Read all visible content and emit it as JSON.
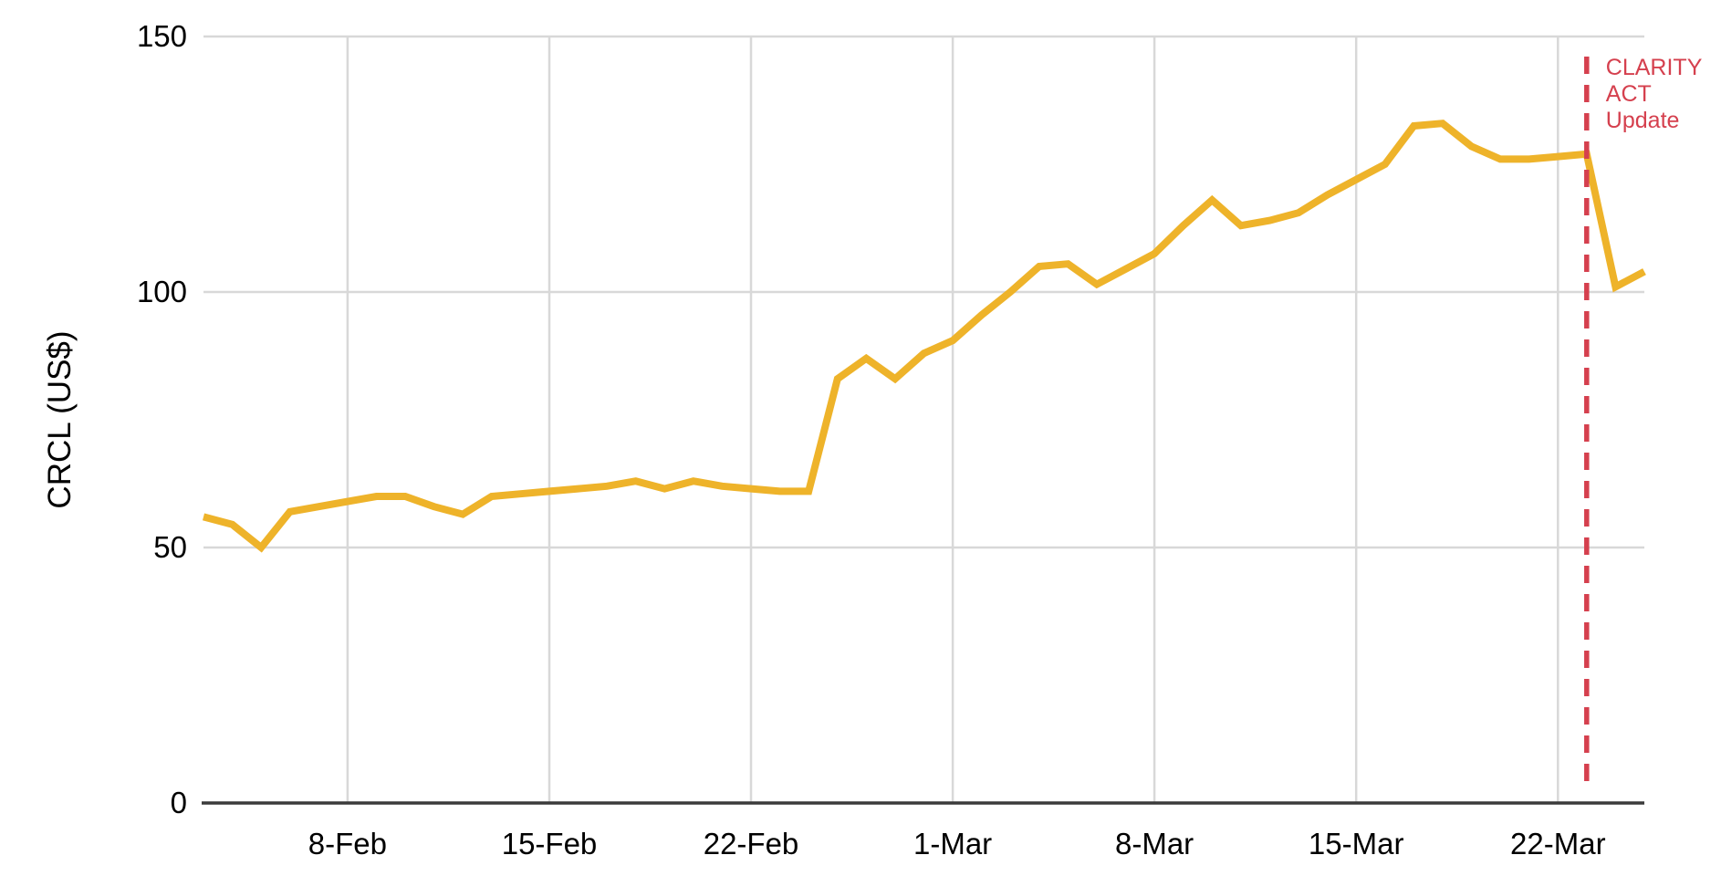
{
  "chart_data": {
    "type": "line",
    "title": "",
    "ylabel": "CRCL (US$)",
    "xlabel": "",
    "ylim": [
      0,
      150
    ],
    "yticks": [
      0,
      50,
      100,
      150
    ],
    "xtick_labels": [
      "8-Feb",
      "15-Feb",
      "22-Feb",
      "1-Mar",
      "8-Mar",
      "15-Mar",
      "22-Mar"
    ],
    "grid": true,
    "legend": false,
    "x": [
      "3-Feb",
      "4-Feb",
      "5-Feb",
      "6-Feb",
      "7-Feb",
      "8-Feb",
      "9-Feb",
      "10-Feb",
      "11-Feb",
      "12-Feb",
      "13-Feb",
      "14-Feb",
      "15-Feb",
      "16-Feb",
      "17-Feb",
      "18-Feb",
      "19-Feb",
      "20-Feb",
      "21-Feb",
      "22-Feb",
      "23-Feb",
      "24-Feb",
      "25-Feb",
      "26-Feb",
      "27-Feb",
      "28-Feb",
      "1-Mar",
      "2-Mar",
      "3-Mar",
      "4-Mar",
      "5-Mar",
      "6-Mar",
      "7-Mar",
      "8-Mar",
      "9-Mar",
      "10-Mar",
      "11-Mar",
      "12-Mar",
      "13-Mar",
      "14-Mar",
      "15-Mar",
      "16-Mar",
      "17-Mar",
      "18-Mar",
      "19-Mar",
      "20-Mar",
      "21-Mar",
      "22-Mar",
      "23-Mar",
      "24-Mar",
      "25-Mar"
    ],
    "series": [
      {
        "name": "CRCL",
        "color": "#EEB32A",
        "values": [
          56,
          54.5,
          50,
          57,
          58,
          59,
          60,
          60,
          58,
          56.5,
          60,
          60.5,
          61,
          61.5,
          62,
          63,
          61.5,
          63,
          62,
          61.5,
          61,
          61,
          83,
          87,
          83,
          88,
          90.5,
          95.5,
          100,
          105,
          105.5,
          101.5,
          104.5,
          107.5,
          113,
          118,
          113,
          114,
          115.5,
          119,
          122,
          125,
          132.5,
          133,
          128.5,
          126,
          126,
          126.5,
          127,
          101,
          104
        ]
      }
    ],
    "annotation": {
      "x": "23-Mar",
      "label_lines": [
        "CLARITY",
        "ACT",
        "Update"
      ],
      "color": "#D5404E",
      "line_style": "dashed"
    }
  },
  "colors": {
    "background": "#FFFFFF",
    "gridline": "#D8D8D8",
    "axis": "#3A3A3A",
    "text": "#000000"
  }
}
